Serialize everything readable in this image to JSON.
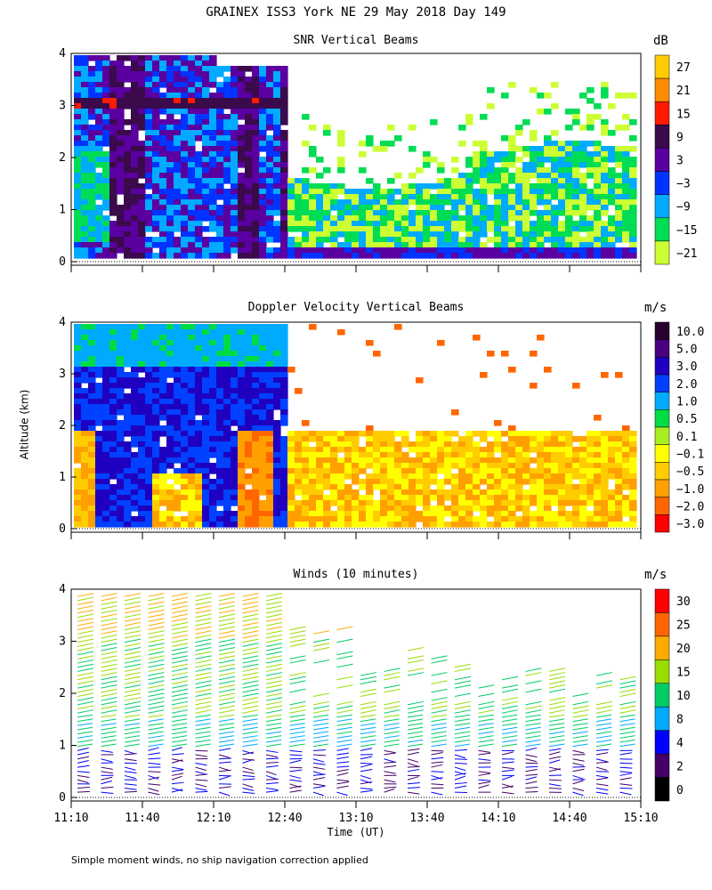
{
  "title": "GRAINEX ISS3 York NE  29 May 2018 Day 149",
  "footnote": "Simple moment winds, no ship navigation correction applied",
  "chart_data": [
    {
      "type": "heatmap",
      "title": "SNR Vertical Beams",
      "colorbar_unit": "dB",
      "colorbar_labels": [
        "27",
        "21",
        "15",
        "9",
        "3",
        "−3",
        "−9",
        "−15",
        "−21"
      ],
      "colorbar_colors": [
        "#ffcc00",
        "#ff8c00",
        "#ff1a00",
        "#3a0a4a",
        "#5a00a0",
        "#0033ff",
        "#00aaff",
        "#00dd55",
        "#ccff33"
      ],
      "ylim": [
        0,
        4
      ],
      "yticks": [
        "0",
        "1",
        "2",
        "3",
        "4"
      ],
      "x_range": [
        "11:10",
        "15:10"
      ]
    },
    {
      "type": "heatmap",
      "title": "Doppler Velocity Vertical Beams",
      "colorbar_unit": "m/s",
      "colorbar_labels": [
        "10.0",
        "5.0",
        "3.0",
        "2.0",
        "1.0",
        "0.5",
        "0.1",
        "−0.1",
        "−0.5",
        "−1.0",
        "−2.0",
        "−3.0"
      ],
      "colorbar_colors": [
        "#2a0030",
        "#4a0080",
        "#2000c0",
        "#0040ff",
        "#00aaff",
        "#00dd44",
        "#aaee22",
        "#ffff00",
        "#ffcc00",
        "#ffa000",
        "#ff6600",
        "#ff0000"
      ],
      "ylim": [
        0,
        4
      ],
      "yticks": [
        "0",
        "1",
        "2",
        "3",
        "4"
      ],
      "ylabel": "Altitude (km)",
      "x_range": [
        "11:10",
        "15:10"
      ]
    },
    {
      "type": "scatter",
      "title": "Winds (10 minutes)",
      "colorbar_unit": "m/s",
      "colorbar_labels": [
        "30",
        "25",
        "20",
        "15",
        "10",
        "8",
        "4",
        "2",
        "0"
      ],
      "colorbar_colors": [
        "#ff0000",
        "#ff6600",
        "#ffaa00",
        "#99dd00",
        "#00cc66",
        "#00aaff",
        "#0000ff",
        "#440066",
        "#000000"
      ],
      "ylim": [
        0,
        4
      ],
      "yticks": [
        "0",
        "1",
        "2",
        "3",
        "4"
      ],
      "xticks": [
        "11:10",
        "11:40",
        "12:10",
        "12:40",
        "13:10",
        "13:40",
        "14:10",
        "14:40",
        "15:10"
      ],
      "xlabel": "Time (UT)",
      "x_range": [
        "11:10",
        "15:10"
      ]
    }
  ]
}
